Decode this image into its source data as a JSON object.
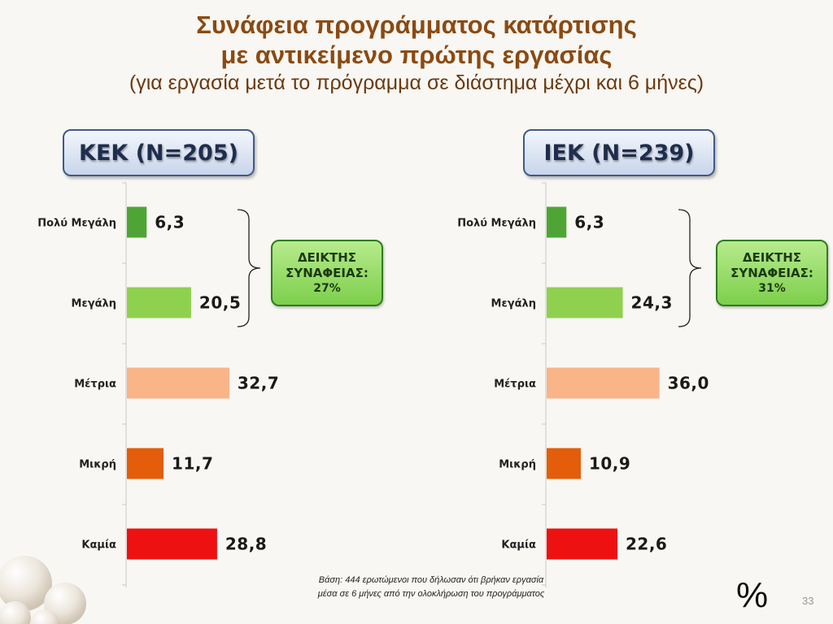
{
  "title": {
    "line1": "Συνάφεια προγράμματος κατάρτισης",
    "line2": "με αντικείμενο πρώτης εργασίας",
    "subtitle": "(για εργασία μετά το πρόγραμμα σε διάστημα μέχρι και 6 μήνες)"
  },
  "panels": [
    {
      "header": "ΚΕΚ (Ν=205)",
      "index_line1": "ΔΕΙΚΤΗΣ",
      "index_line2": "ΣΥΝΑΦΕΙΑΣ:",
      "index_line3": "27%"
    },
    {
      "header": "ΙΕΚ (Ν=239)",
      "index_line1": "ΔΕΙΚΤΗΣ",
      "index_line2": "ΣΥΝΑΦΕΙΑΣ:",
      "index_line3": "31%"
    }
  ],
  "chart_data": [
    {
      "type": "bar",
      "orientation": "horizontal",
      "categories": [
        "Πολύ Μεγάλη",
        "Μεγάλη",
        "Μέτρια",
        "Μικρή",
        "Καμία"
      ],
      "values": [
        6.3,
        20.5,
        32.7,
        11.7,
        28.8
      ],
      "value_labels": [
        "6,3",
        "20,5",
        "32,7",
        "11,7",
        "28,8"
      ],
      "colors": [
        "#4ea536",
        "#8fd14f",
        "#f9b488",
        "#e35d0a",
        "#ee1111"
      ],
      "xlim": [
        0,
        100
      ]
    },
    {
      "type": "bar",
      "orientation": "horizontal",
      "categories": [
        "Πολύ Μεγάλη",
        "Μεγάλη",
        "Μέτρια",
        "Μικρή",
        "Καμία"
      ],
      "values": [
        6.3,
        24.3,
        36.0,
        10.9,
        22.6
      ],
      "value_labels": [
        "6,3",
        "24,3",
        "36,0",
        "10,9",
        "22,6"
      ],
      "colors": [
        "#4ea536",
        "#8fd14f",
        "#f9b488",
        "#e35d0a",
        "#ee1111"
      ],
      "xlim": [
        0,
        100
      ]
    }
  ],
  "footnote": {
    "line1": "Βάση: 444 ερωτώμενοι που δήλωσαν ότι βρήκαν εργασία",
    "line2": "μέσα σε 6 μήνες από την ολοκλήρωση του προγράμματος"
  },
  "unit": "%",
  "page_number": "33"
}
